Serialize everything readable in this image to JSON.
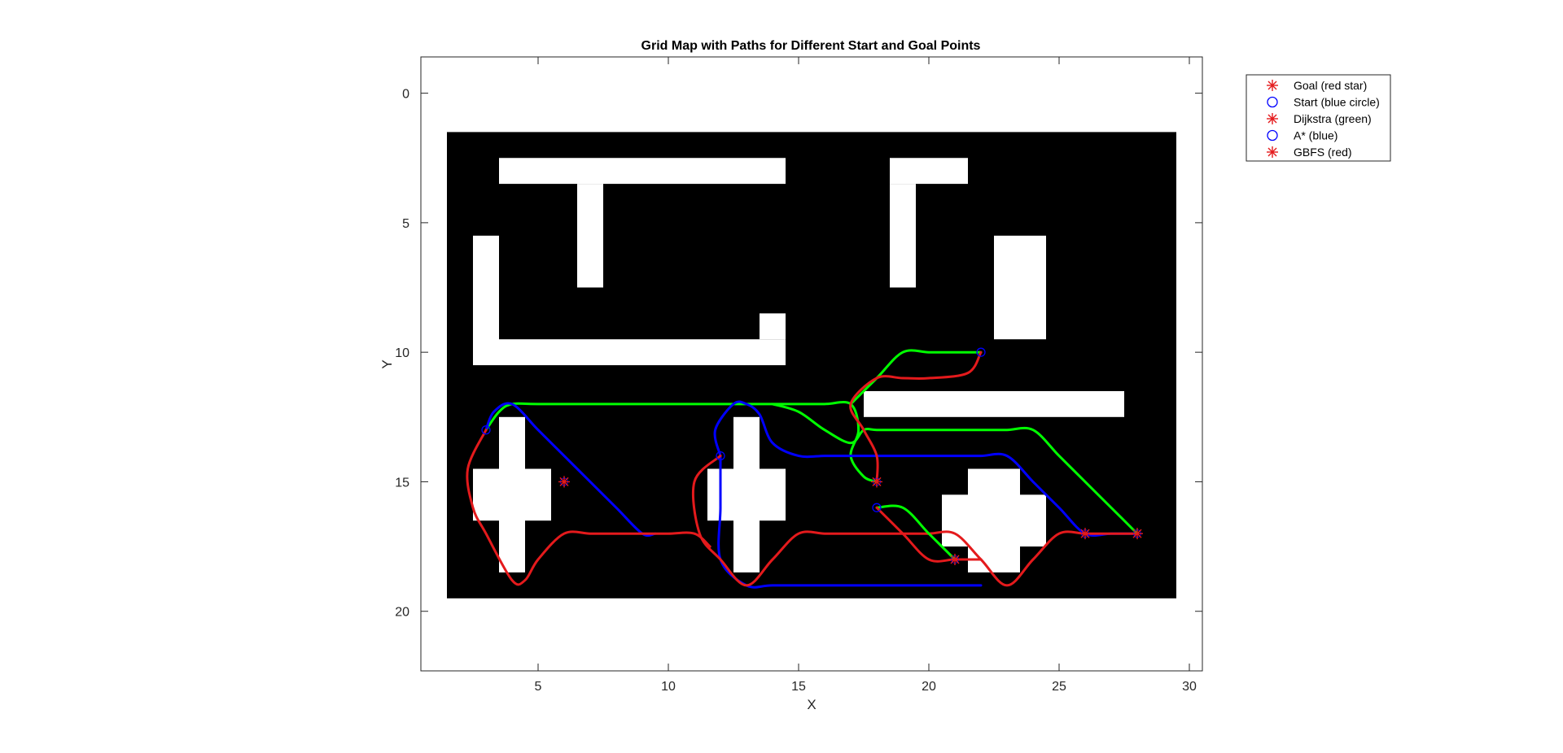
{
  "chart_data": {
    "type": "line",
    "title": "Grid Map with Paths for Different Start and Goal Points",
    "xlabel": "X",
    "ylabel": "Y",
    "xlim": [
      0.5,
      30.5
    ],
    "ylim": [
      22.3,
      -1.4
    ],
    "y_reversed": true,
    "x_ticks": [
      5,
      10,
      15,
      20,
      25,
      30
    ],
    "y_ticks": [
      0,
      5,
      10,
      15,
      20
    ],
    "grid": false,
    "legend_position": "top-right-outside",
    "legend": [
      {
        "label": "Goal (red star)",
        "marker": "star",
        "color": "#e41a1c"
      },
      {
        "label": "Start (blue circle)",
        "marker": "circle",
        "color": "#0000ff"
      },
      {
        "label": "Dijkstra (green)",
        "marker": "star",
        "color": "#e41a1c"
      },
      {
        "label": "A* (blue)",
        "marker": "circle",
        "color": "#0000ff"
      },
      {
        "label": "GBFS (red)",
        "marker": "star",
        "color": "#e41a1c"
      }
    ],
    "grid_map": {
      "free_region": {
        "x": [
          1.5,
          29.5
        ],
        "y": [
          1.5,
          19.5
        ],
        "color": "#000000"
      },
      "obstacle_color": "#ffffff",
      "obstacles": [
        {
          "x0": 3.5,
          "x1": 14.5,
          "y0": 2.5,
          "y1": 3.5
        },
        {
          "x0": 6.5,
          "x1": 7.5,
          "y0": 3.5,
          "y1": 7.5
        },
        {
          "x0": 2.5,
          "x1": 3.5,
          "y0": 5.5,
          "y1": 10.5
        },
        {
          "x0": 3.5,
          "x1": 14.5,
          "y0": 9.5,
          "y1": 10.5
        },
        {
          "x0": 13.5,
          "x1": 14.5,
          "y0": 8.5,
          "y1": 9.5
        },
        {
          "x0": 18.5,
          "x1": 21.5,
          "y0": 2.5,
          "y1": 3.5
        },
        {
          "x0": 18.5,
          "x1": 19.5,
          "y0": 3.5,
          "y1": 7.5
        },
        {
          "x0": 22.5,
          "x1": 24.5,
          "y0": 5.5,
          "y1": 9.5
        },
        {
          "x0": 17.5,
          "x1": 27.5,
          "y0": 11.5,
          "y1": 12.5
        },
        {
          "x0": 3.5,
          "x1": 4.5,
          "y0": 12.5,
          "y1": 18.5
        },
        {
          "x0": 2.5,
          "x1": 5.5,
          "y0": 14.5,
          "y1": 16.5
        },
        {
          "x0": 12.5,
          "x1": 13.5,
          "y0": 12.5,
          "y1": 18.5
        },
        {
          "x0": 11.5,
          "x1": 14.5,
          "y0": 14.5,
          "y1": 16.5
        },
        {
          "x0": 21.5,
          "x1": 23.5,
          "y0": 14.5,
          "y1": 18.5
        },
        {
          "x0": 20.5,
          "x1": 24.5,
          "y0": 15.5,
          "y1": 17.5
        }
      ]
    },
    "series": [
      {
        "name": "Dijkstra (green)",
        "color": "#00ff00",
        "path": [
          [
            3,
            13
          ],
          [
            3.5,
            12.3
          ],
          [
            4,
            12
          ],
          [
            5,
            12
          ],
          [
            8,
            12
          ],
          [
            12,
            12
          ],
          [
            13,
            12
          ],
          [
            14,
            12
          ],
          [
            15,
            12
          ],
          [
            16,
            12
          ],
          [
            17,
            12
          ],
          [
            17.3,
            13
          ],
          [
            17,
            14
          ],
          [
            17.5,
            14.8
          ],
          [
            18,
            15
          ]
        ]
      },
      {
        "name": "A* (blue)",
        "color": "#0000ff",
        "path": [
          [
            3,
            13
          ],
          [
            3.3,
            12.3
          ],
          [
            4,
            12
          ],
          [
            5,
            13
          ],
          [
            6,
            14
          ],
          [
            7,
            15
          ],
          [
            8,
            16
          ],
          [
            9,
            17
          ],
          [
            9.5,
            17
          ]
        ]
      },
      {
        "name": "GBFS (red)",
        "color": "#e41a1c",
        "path": [
          [
            3,
            13
          ],
          [
            2.3,
            14.5
          ],
          [
            2.5,
            16
          ],
          [
            3,
            17
          ],
          [
            4,
            18.8
          ],
          [
            4.5,
            18.8
          ],
          [
            5,
            18
          ],
          [
            6,
            17
          ],
          [
            7,
            17
          ],
          [
            8,
            17
          ],
          [
            9,
            17
          ],
          [
            10,
            17
          ],
          [
            11,
            17
          ],
          [
            11.6,
            17.5
          ]
        ]
      },
      {
        "name": "A* (blue)",
        "color": "#0000ff",
        "path": [
          [
            12,
            14
          ],
          [
            11.8,
            13
          ],
          [
            12.5,
            12
          ],
          [
            13,
            12
          ],
          [
            13.5,
            12.4
          ],
          [
            14,
            13.5
          ],
          [
            15,
            14
          ],
          [
            16,
            14
          ],
          [
            17,
            14
          ],
          [
            18,
            14
          ],
          [
            19,
            14
          ],
          [
            20,
            14
          ],
          [
            21,
            14
          ],
          [
            22,
            14
          ],
          [
            23,
            14
          ],
          [
            24,
            15
          ],
          [
            25,
            16
          ],
          [
            26,
            17
          ],
          [
            27,
            17
          ],
          [
            28,
            17
          ]
        ]
      },
      {
        "name": "A* (blue)",
        "color": "#0000ff",
        "path": [
          [
            12,
            14
          ],
          [
            12,
            16
          ],
          [
            12,
            18
          ],
          [
            13,
            19
          ],
          [
            14,
            19
          ],
          [
            16,
            19
          ],
          [
            18,
            19
          ],
          [
            20,
            19
          ],
          [
            22,
            19
          ]
        ]
      },
      {
        "name": "GBFS (red)",
        "color": "#e41a1c",
        "path": [
          [
            12,
            14
          ],
          [
            11,
            15
          ],
          [
            11.2,
            17
          ],
          [
            12,
            18
          ],
          [
            13,
            19
          ],
          [
            14,
            18
          ],
          [
            15,
            17
          ],
          [
            16,
            17
          ],
          [
            17,
            17
          ],
          [
            18,
            17
          ],
          [
            19,
            17
          ],
          [
            20,
            17
          ],
          [
            21,
            17
          ],
          [
            22,
            18
          ],
          [
            23,
            19
          ],
          [
            24,
            18
          ],
          [
            25,
            17
          ],
          [
            26,
            17
          ],
          [
            27,
            17
          ],
          [
            28,
            17
          ]
        ]
      },
      {
        "name": "Dijkstra (green)",
        "color": "#00ff00",
        "path": [
          [
            14,
            12
          ],
          [
            15,
            12.3
          ],
          [
            16,
            13
          ],
          [
            17,
            13.5
          ],
          [
            17.5,
            13
          ],
          [
            18,
            13
          ],
          [
            19,
            13
          ],
          [
            20,
            13
          ],
          [
            21,
            13
          ],
          [
            22,
            13
          ],
          [
            23,
            13
          ],
          [
            24,
            13
          ],
          [
            25,
            14
          ],
          [
            26,
            15
          ],
          [
            27,
            16
          ],
          [
            28,
            17
          ]
        ]
      },
      {
        "name": "Dijkstra (green)",
        "color": "#00ff00",
        "path": [
          [
            17,
            12
          ],
          [
            18,
            11
          ],
          [
            19,
            10
          ],
          [
            20,
            10
          ],
          [
            21,
            10
          ],
          [
            22,
            10
          ]
        ]
      },
      {
        "name": "GBFS (red)",
        "color": "#e41a1c",
        "path": [
          [
            22,
            10
          ],
          [
            21.5,
            10.8
          ],
          [
            20,
            11
          ],
          [
            19,
            11
          ],
          [
            18,
            11
          ],
          [
            17,
            12
          ],
          [
            17.5,
            13
          ],
          [
            18,
            14
          ],
          [
            18,
            15
          ]
        ]
      },
      {
        "name": "Dijkstra (green)",
        "color": "#00ff00",
        "path": [
          [
            18,
            16
          ],
          [
            19,
            16
          ],
          [
            20,
            17
          ],
          [
            21,
            18
          ]
        ]
      },
      {
        "name": "GBFS (red)",
        "color": "#e41a1c",
        "path": [
          [
            18,
            16
          ],
          [
            19,
            17
          ],
          [
            20,
            18
          ],
          [
            21,
            18
          ],
          [
            22,
            18
          ]
        ]
      }
    ],
    "goal_points": [
      [
        6,
        15
      ],
      [
        18,
        15
      ],
      [
        21,
        18
      ],
      [
        26,
        17
      ],
      [
        28,
        17
      ]
    ],
    "start_points": [
      [
        3,
        13
      ],
      [
        12,
        14
      ],
      [
        18,
        16
      ],
      [
        22,
        10
      ]
    ]
  }
}
